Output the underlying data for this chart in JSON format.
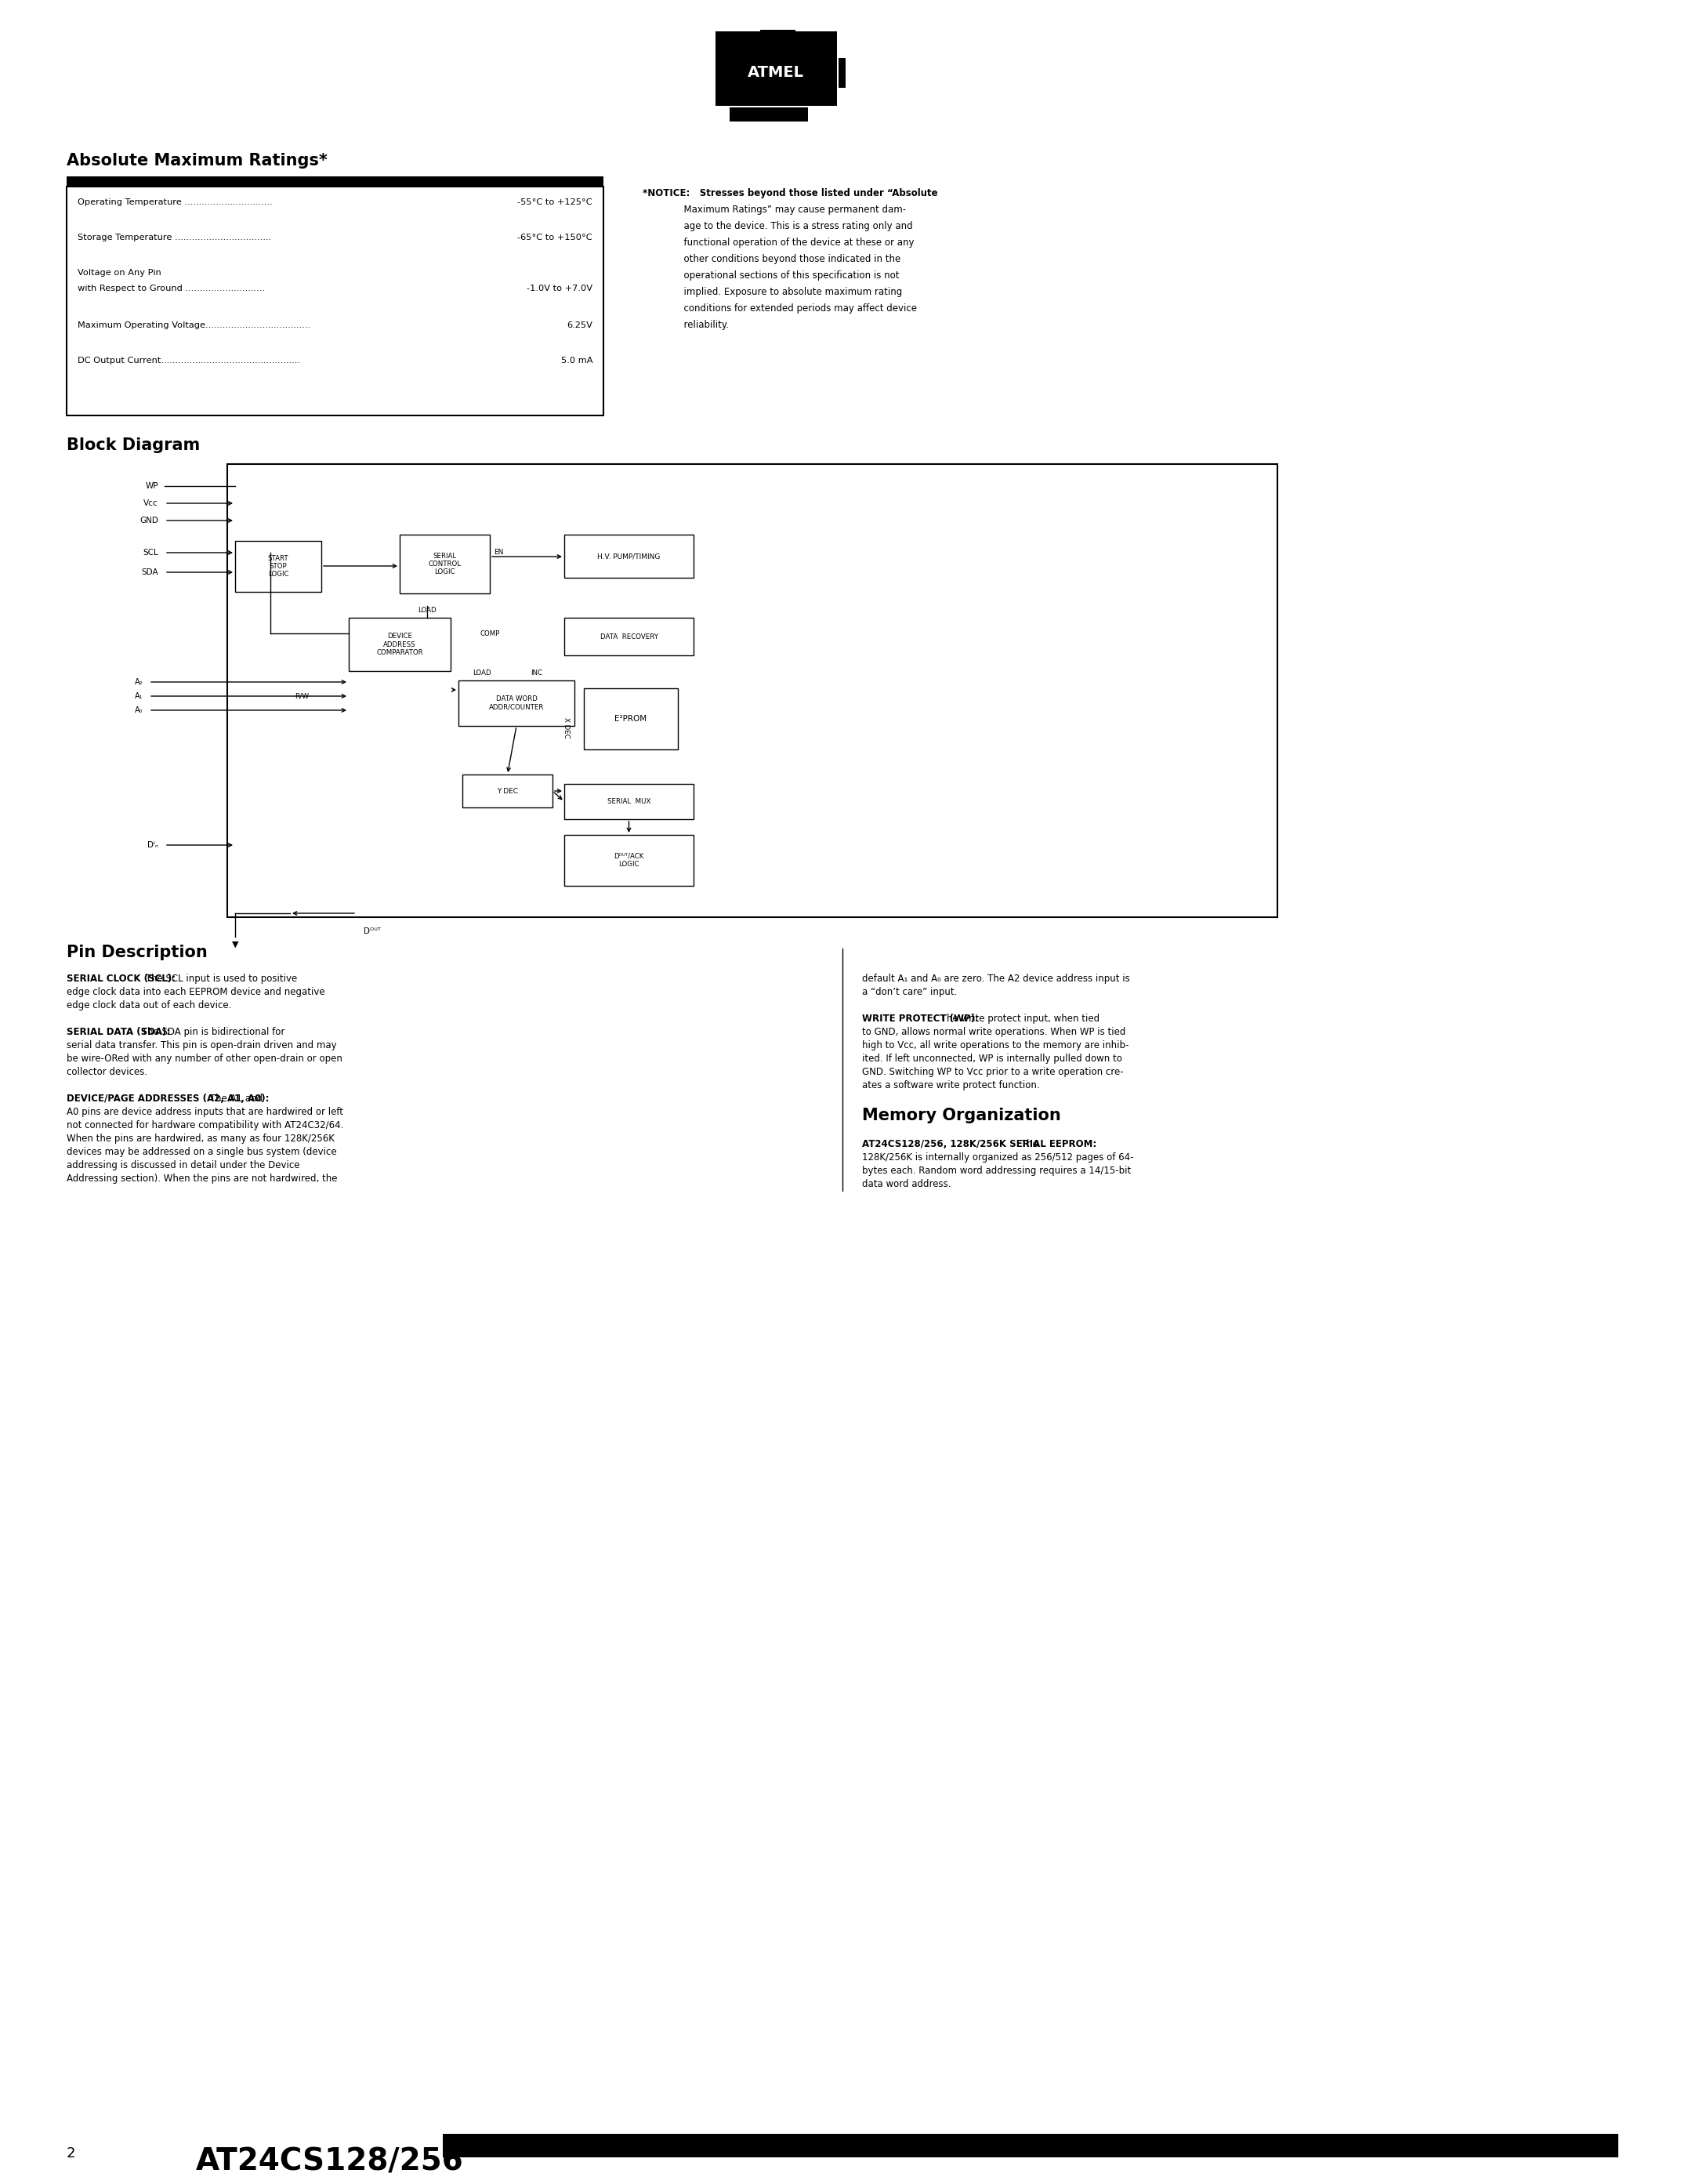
{
  "page_bg": "#ffffff",
  "abs_max_title": "Absolute Maximum Ratings*",
  "notice_lines": [
    "*NOTICE:   Stresses beyond those listed under “Absolute",
    "              Maximum Ratings” may cause permanent dam-",
    "              age to the device. This is a stress rating only and",
    "              functional operation of the device at these or any",
    "              other conditions beyond those indicated in the",
    "              operational sections of this specification is not",
    "              implied. Exposure to absolute maximum rating",
    "              conditions for extended periods may affect device",
    "              reliability."
  ],
  "block_diagram_title": "Block Diagram",
  "pin_desc_title": "Pin Description",
  "mem_org_title": "Memory Organization",
  "footer_page": "2",
  "footer_title": "AT24CS128/256"
}
